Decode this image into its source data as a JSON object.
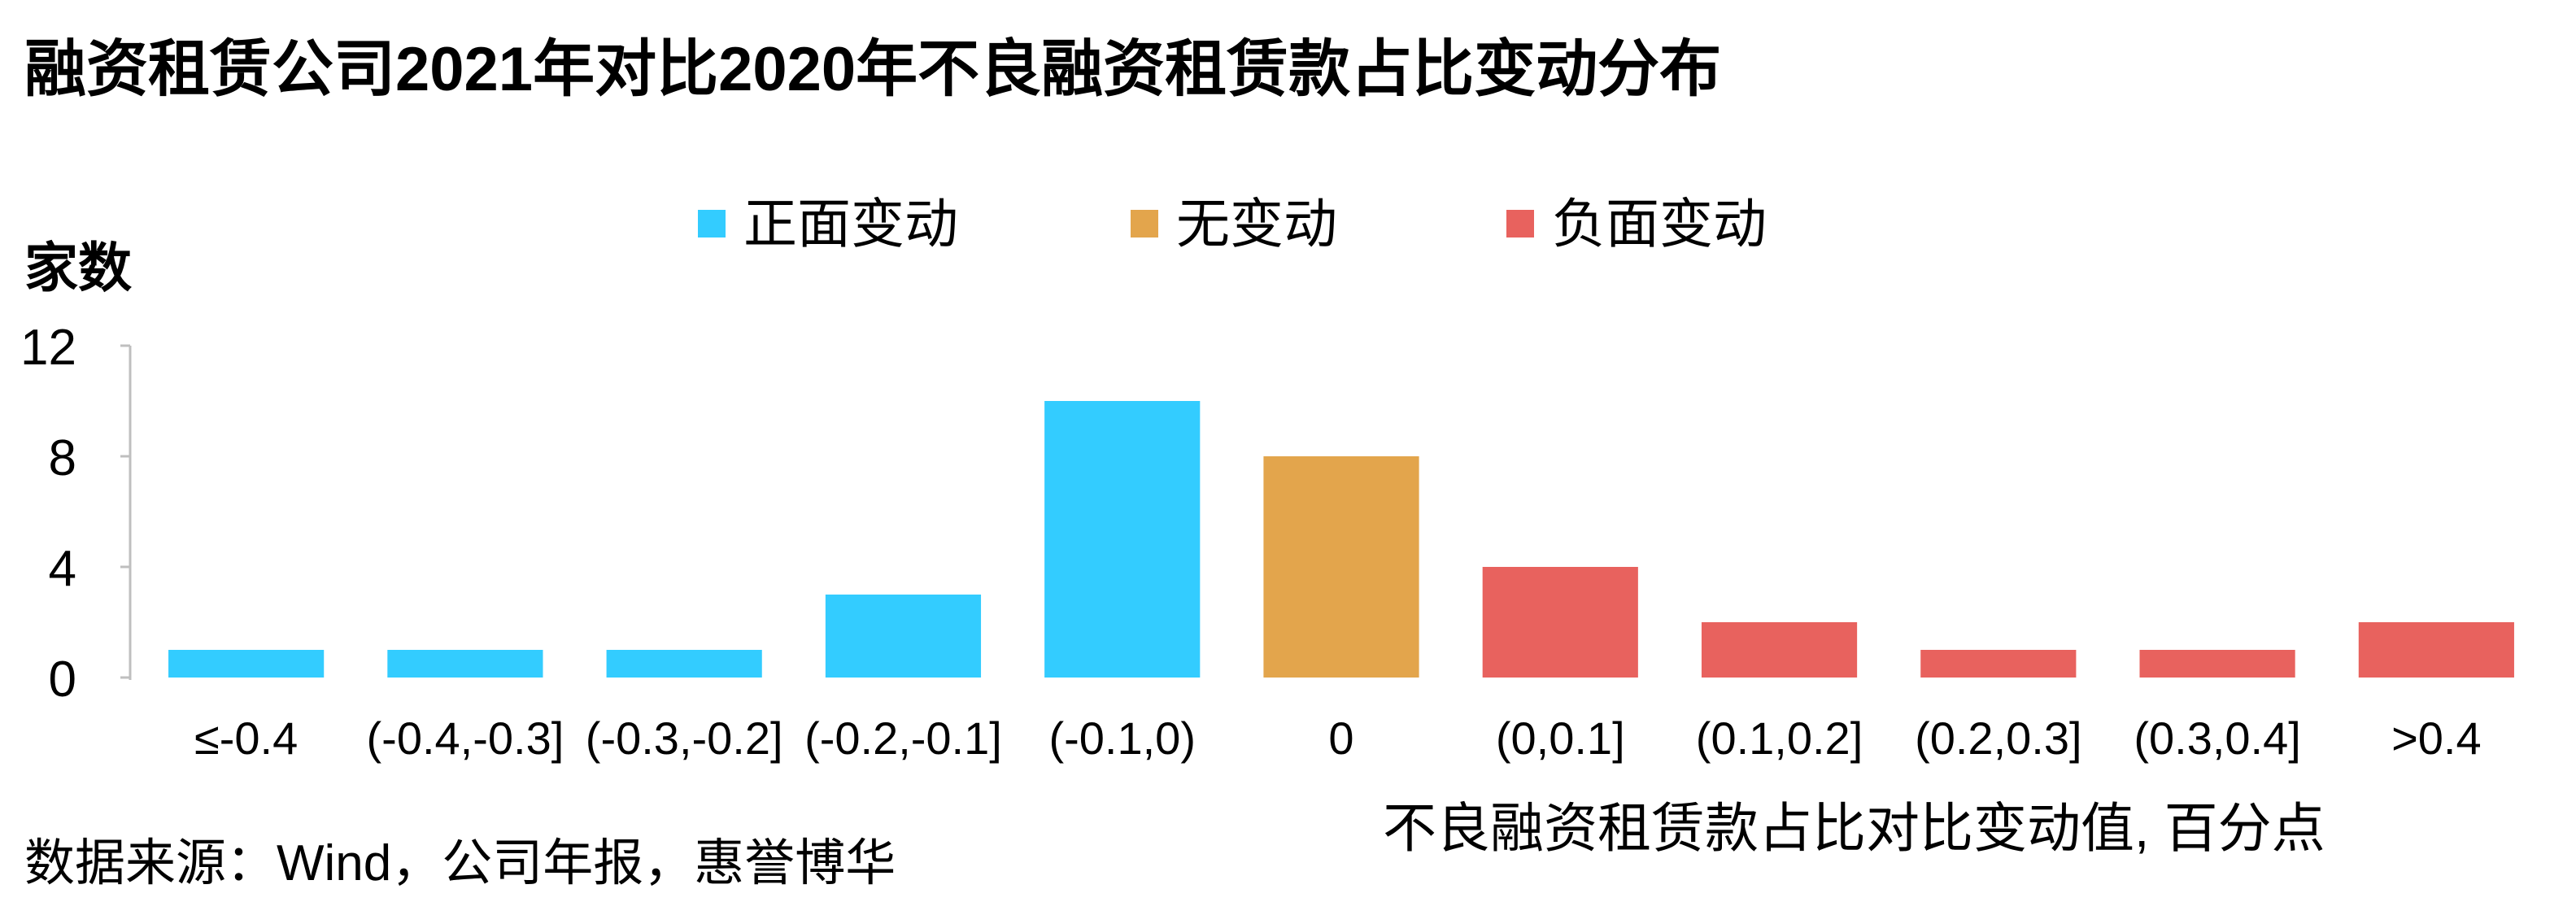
{
  "title": "融资租赁公司2021年对比2020年不良融资租赁款占比变动分布",
  "source": "数据来源：Wind，公司年报，惠誉博华",
  "chart_data": {
    "type": "bar",
    "categories": [
      "≤-0.4",
      "(-0.4,-0.3]",
      "(-0.3,-0.2]",
      "(-0.2,-0.1]",
      "(-0.1,0)",
      "0",
      "(0,0.1]",
      "(0.1,0.2]",
      "(0.2,0.3]",
      "(0.3,0.4]",
      ">0.4"
    ],
    "values": [
      1,
      1,
      1,
      3,
      10,
      8,
      4,
      2,
      1,
      1,
      2
    ],
    "bar_groups": [
      "positive",
      "positive",
      "positive",
      "positive",
      "positive",
      "none",
      "negative",
      "negative",
      "negative",
      "negative",
      "negative"
    ],
    "legend": [
      {
        "key": "positive",
        "label": "正面变动",
        "color": "#33CCFF"
      },
      {
        "key": "none",
        "label": "无变动",
        "color": "#E3A54C"
      },
      {
        "key": "negative",
        "label": "负面变动",
        "color": "#E8625E"
      }
    ],
    "ylabel": "家数",
    "xlabel": "不良融资租赁款占比对比变动值, 百分点",
    "ylim": [
      0,
      12
    ],
    "yticks": [
      "0",
      "4",
      "8",
      "12"
    ],
    "grid": false,
    "legend_position": "top"
  }
}
